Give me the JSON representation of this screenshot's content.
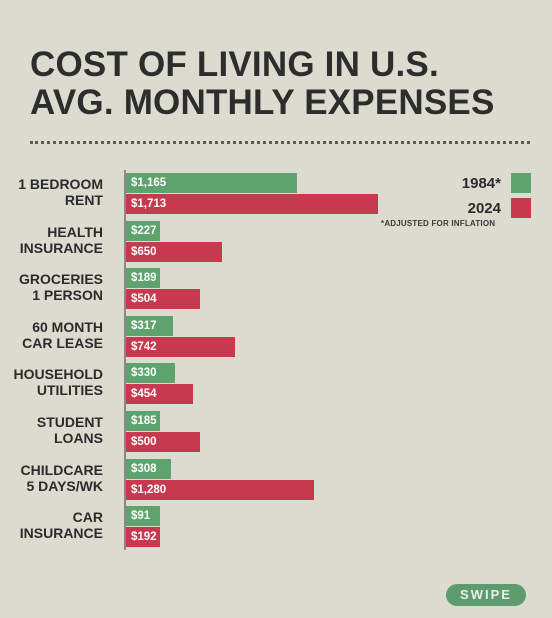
{
  "title": {
    "line1": "COST OF LIVING IN U.S.",
    "line2": "AVG. MONTHLY EXPENSES"
  },
  "legend": {
    "note": "*ADJUSTED FOR INFLATION"
  },
  "swipe_label": "SWIPE",
  "colors": {
    "background": "#dcdbd0",
    "series_1984": "#5ea36e",
    "series_2024": "#c6394e"
  },
  "chart_data": {
    "type": "bar",
    "orientation": "horizontal",
    "title": "COST OF LIVING IN U.S. AVG. MONTHLY EXPENSES",
    "categories": [
      "1 BEDROOM\nRENT",
      "HEALTH\nINSURANCE",
      "GROCERIES\n1 PERSON",
      "60 MONTH\nCAR LEASE",
      "HOUSEHOLD\nUTILITIES",
      "STUDENT\nLOANS",
      "CHILDCARE\n5 DAYS/WK",
      "CAR\nINSURANCE"
    ],
    "series": [
      {
        "name": "1984*",
        "color": "#5ea36e",
        "values": [
          1165,
          227,
          189,
          317,
          330,
          185,
          308,
          91
        ],
        "labels": [
          "$1,165",
          "$227",
          "$189",
          "$317",
          "$330",
          "$185",
          "$308",
          "$91"
        ]
      },
      {
        "name": "2024",
        "color": "#c6394e",
        "values": [
          1713,
          650,
          504,
          742,
          454,
          500,
          1280,
          192
        ],
        "labels": [
          "$1,713",
          "$650",
          "$504",
          "$742",
          "$454",
          "$500",
          "$1,280",
          "$192"
        ]
      }
    ],
    "legend_position": "top-right",
    "grid": false
  }
}
